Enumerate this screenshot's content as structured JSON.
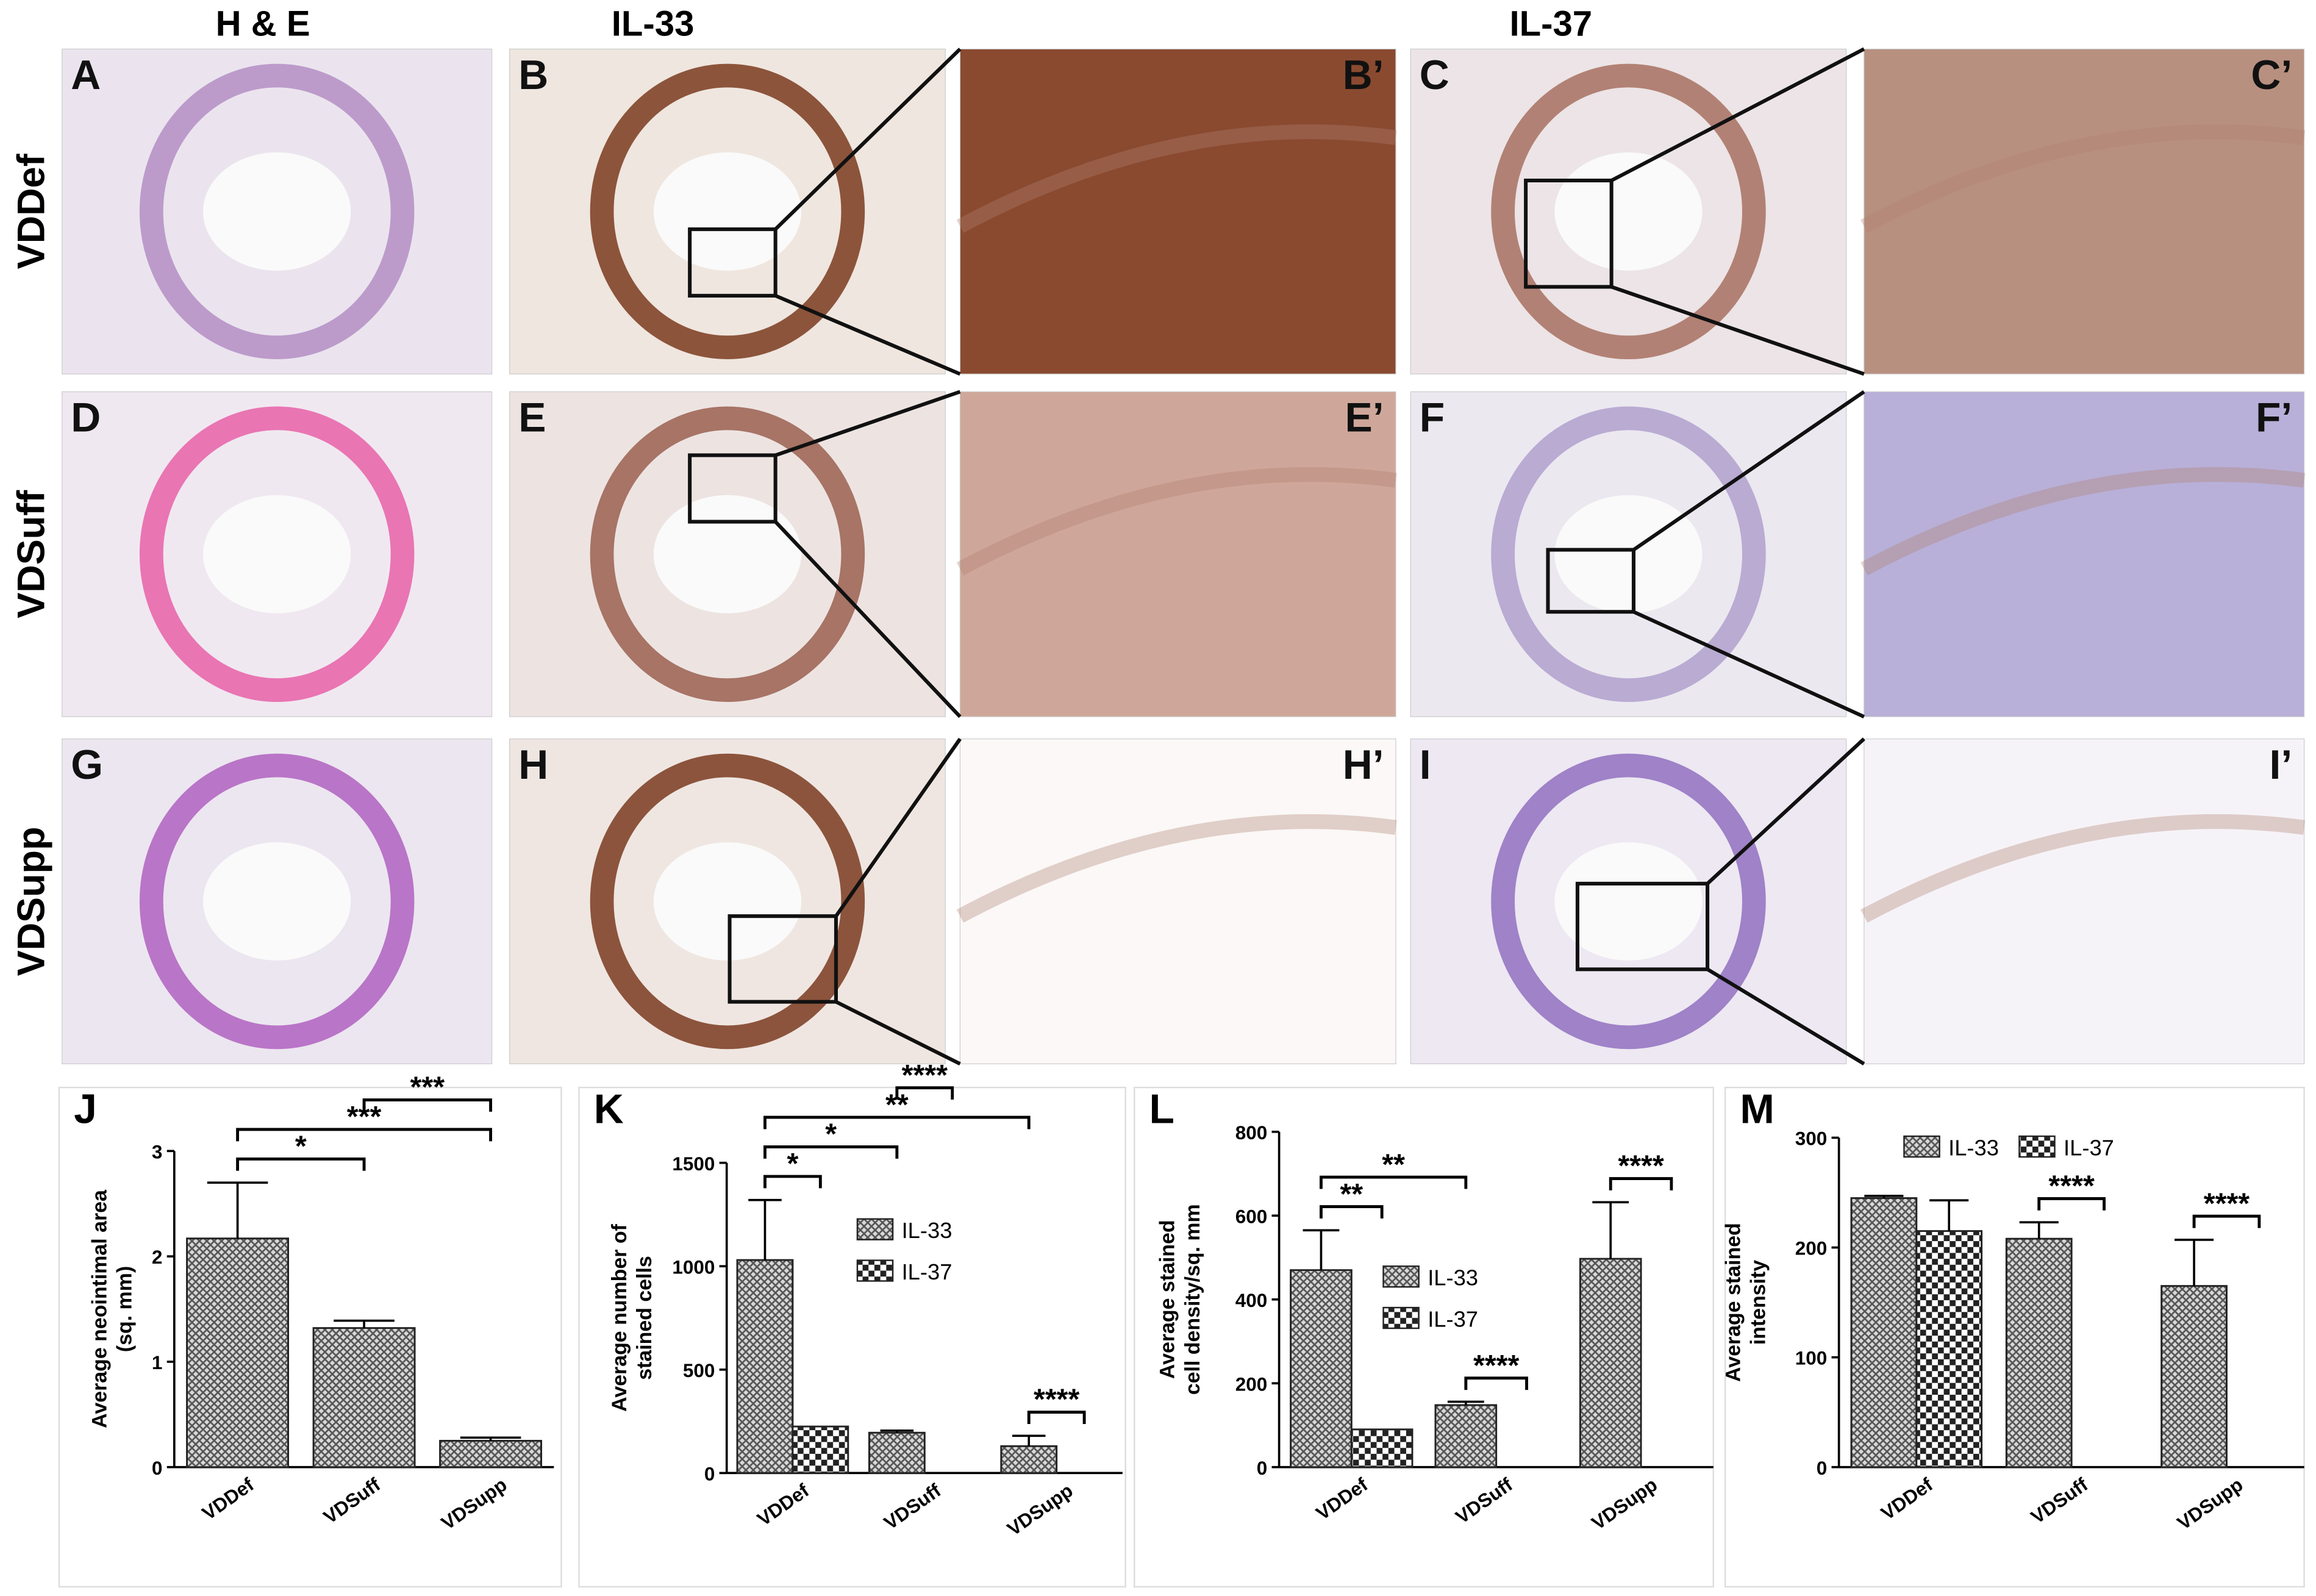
{
  "column_headers": [
    "H & E",
    "IL-33",
    "IL-37"
  ],
  "row_labels": [
    "VDDef",
    "VDSuff",
    "VDSupp"
  ],
  "panel_labels": [
    [
      "A",
      "B",
      "B’",
      "C",
      "C’"
    ],
    [
      "D",
      "E",
      "E’",
      "F",
      "F’"
    ],
    [
      "G",
      "H",
      "H’",
      "I",
      "I’"
    ]
  ],
  "chart_data": [
    {
      "type": "bar",
      "panel_label": "J",
      "ylabel": [
        "Average neointimal area",
        "(sq. mm)"
      ],
      "categories": [
        "VDDef",
        "VDSuff",
        "VDSupp"
      ],
      "values": [
        2.17,
        1.32,
        0.25
      ],
      "errors": [
        0.53,
        0.07,
        0.03
      ],
      "color": "#555555",
      "pattern": "hatch",
      "ylim": [
        0,
        3
      ],
      "yticks": [
        0,
        1,
        2,
        3
      ],
      "significance": [
        {
          "text": "*",
          "from": "VDDef",
          "to": "VDSuff"
        },
        {
          "text": "***",
          "from": "VDDef",
          "to": "VDSupp"
        },
        {
          "text": "***",
          "from": "VDSuff",
          "to": "VDSupp"
        }
      ]
    },
    {
      "type": "bar",
      "panel_label": "K",
      "ylabel": [
        "Average number of",
        "stained cells"
      ],
      "categories": [
        "VDDef",
        "VDSuff",
        "VDSupp"
      ],
      "series": [
        {
          "name": "IL-33",
          "color": "#555555",
          "pattern": "hatch",
          "values": [
            1030,
            195,
            130
          ],
          "errors": [
            290,
            10,
            50
          ]
        },
        {
          "name": "IL-37",
          "color": "#222222",
          "pattern": "checker",
          "values": [
            225,
            null,
            null
          ],
          "errors": [
            null,
            null,
            null
          ]
        }
      ],
      "ylim": [
        0,
        1500
      ],
      "yticks": [
        0,
        500,
        1000,
        1500
      ],
      "legend": "right",
      "significance": [
        {
          "text": "*",
          "from": "VDDef",
          "to": "VDDef"
        },
        {
          "text": "*",
          "from": "VDDef",
          "to": "VDSuff"
        },
        {
          "text": "**",
          "from": "VDDef",
          "to": "VDSupp"
        },
        {
          "text": "****",
          "from": "VDSuff",
          "to": "VDSuff"
        },
        {
          "text": "****",
          "from": "VDSupp",
          "to": "VDSupp"
        }
      ]
    },
    {
      "type": "bar",
      "panel_label": "L",
      "ylabel": [
        "Average stained",
        "cell density/sq. mm"
      ],
      "categories": [
        "VDDef",
        "VDSuff",
        "VDSupp"
      ],
      "series": [
        {
          "name": "IL-33",
          "color": "#555555",
          "pattern": "hatch",
          "values": [
            470,
            148,
            497
          ],
          "errors": [
            95,
            8,
            135
          ]
        },
        {
          "name": "IL-37",
          "color": "#222222",
          "pattern": "checker",
          "values": [
            90,
            null,
            null
          ],
          "errors": [
            null,
            null,
            null
          ]
        }
      ],
      "ylim": [
        0,
        800
      ],
      "yticks": [
        0,
        200,
        400,
        600,
        800
      ],
      "legend": "center",
      "significance": [
        {
          "text": "**",
          "from": "VDDef",
          "to": "VDDef"
        },
        {
          "text": "**",
          "from": "VDDef",
          "to": "VDSuff"
        },
        {
          "text": "****",
          "from": "VDSuff",
          "to": "VDSuff"
        },
        {
          "text": "****",
          "from": "VDSupp",
          "to": "VDSupp"
        }
      ]
    },
    {
      "type": "bar",
      "panel_label": "M",
      "ylabel": [
        "Average stained",
        "intensity"
      ],
      "categories": [
        "VDDef",
        "VDSuff",
        "VDSupp"
      ],
      "series": [
        {
          "name": "IL-33",
          "color": "#555555",
          "pattern": "hatch",
          "values": [
            245,
            208,
            165
          ],
          "errors": [
            2,
            15,
            42
          ]
        },
        {
          "name": "IL-37",
          "color": "#222222",
          "pattern": "checker",
          "values": [
            215,
            null,
            null
          ],
          "errors": [
            28,
            null,
            null
          ]
        }
      ],
      "ylim": [
        0,
        300
      ],
      "yticks": [
        0,
        100,
        200,
        300
      ],
      "legend": "top",
      "significance": [
        {
          "text": "****",
          "from": "VDSuff",
          "to": "VDSuff"
        },
        {
          "text": "****",
          "from": "VDSupp",
          "to": "VDSupp"
        }
      ]
    }
  ]
}
